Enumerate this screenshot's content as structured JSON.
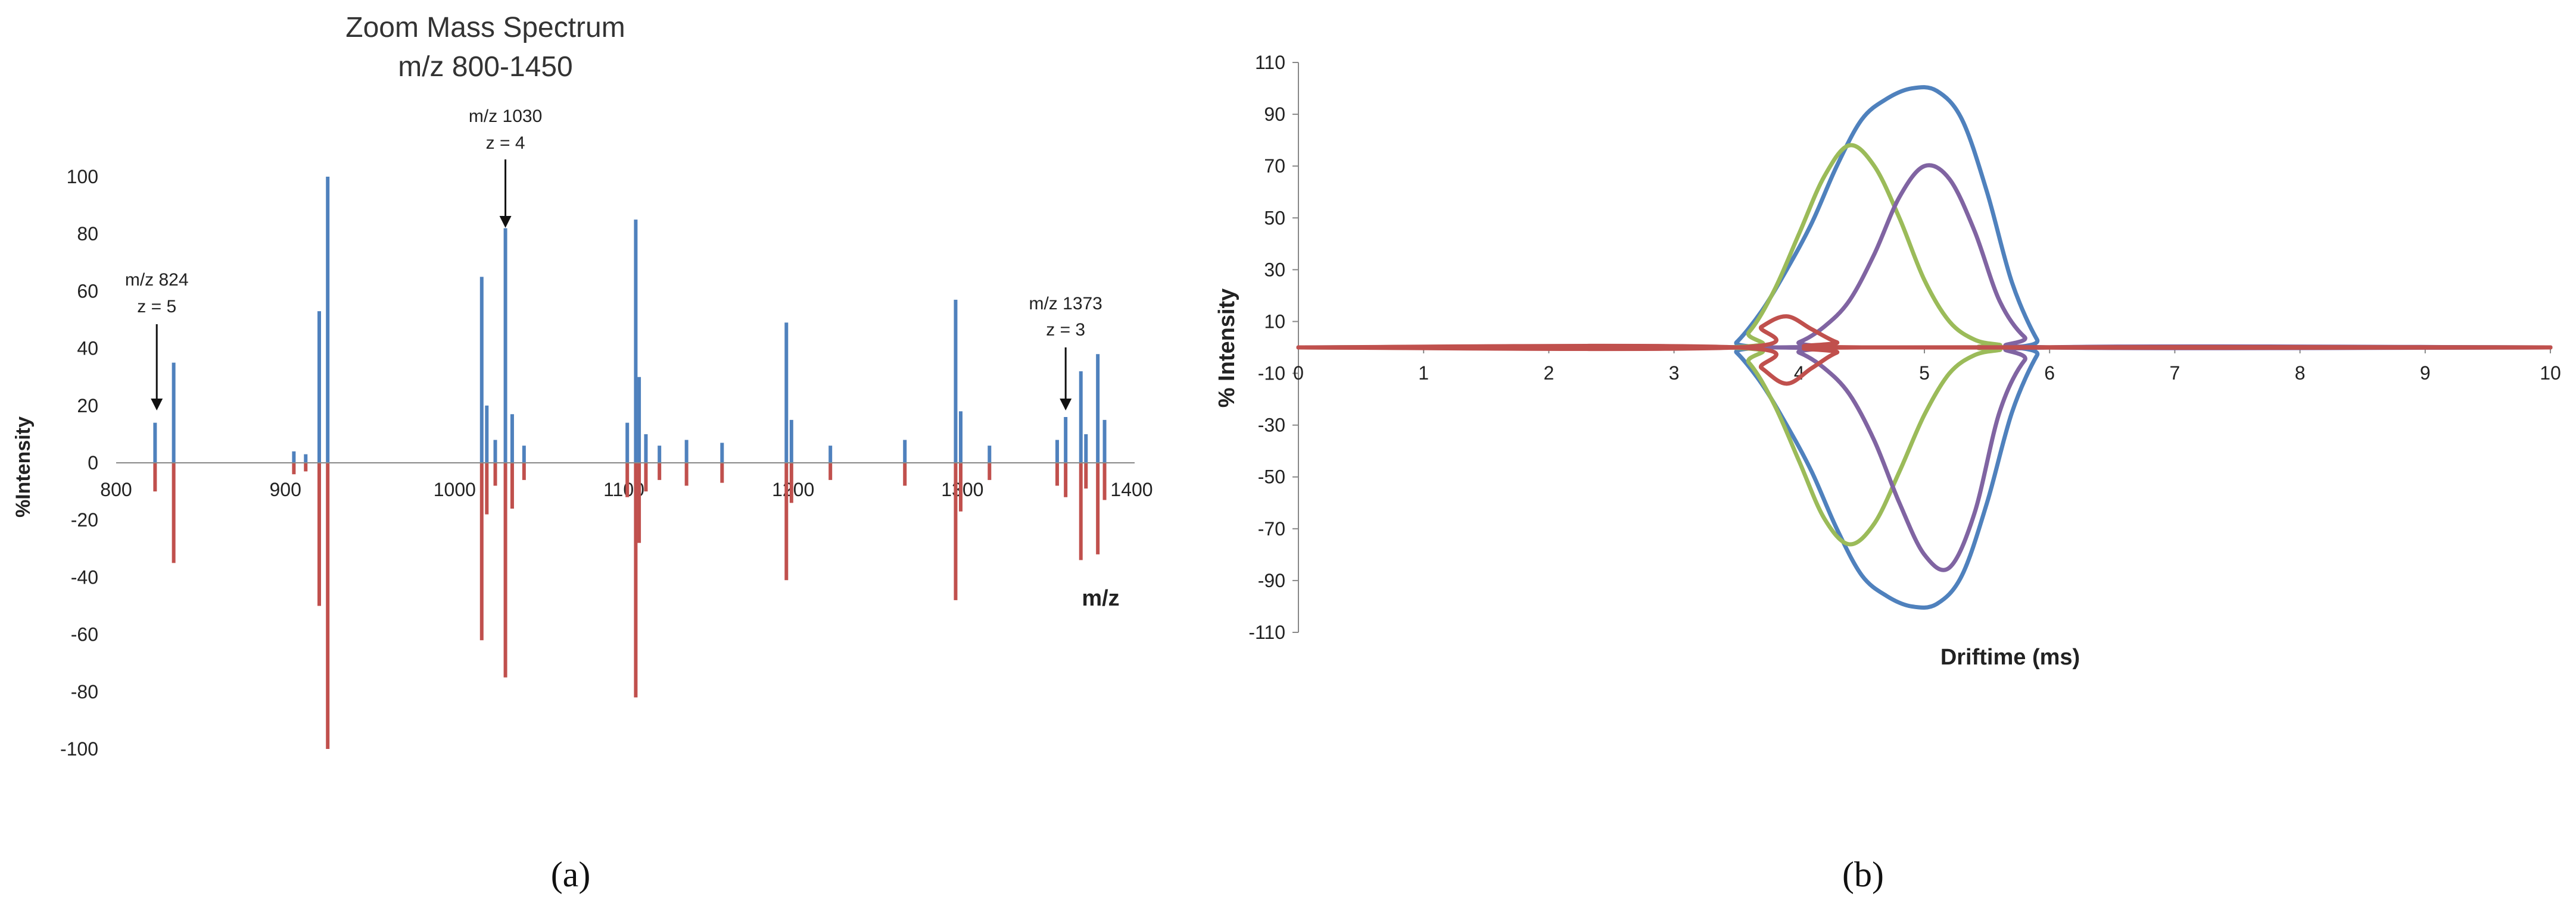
{
  "colors": {
    "positive": "#4f81bd",
    "negative": "#c0504d",
    "series_b": [
      "#4f81bd",
      "#9bbb59",
      "#8064a2",
      "#c0504d"
    ]
  },
  "chart_data": [
    {
      "panel": "(a)",
      "type": "bar",
      "title": "Zoom Mass Spectrum",
      "subtitle": "m/z 800-1450",
      "xlabel": "m/z",
      "ylabel": "%Intensity",
      "xlim": [
        800,
        1400
      ],
      "ylim": [
        -100,
        100
      ],
      "xticks": [
        "800",
        "900",
        "1000",
        "1100",
        "1200",
        "1300",
        "1400"
      ],
      "yticks": [
        "100",
        "80",
        "60",
        "40",
        "20",
        "0",
        "-20",
        "-40",
        "-60",
        "-80",
        "-100"
      ],
      "grid": false,
      "series": [
        {
          "x": [
            823,
            834,
            905,
            912,
            920,
            925,
            1016,
            1019,
            1024,
            1030,
            1034,
            1041,
            1102,
            1107,
            1109,
            1113,
            1121,
            1137,
            1158,
            1196,
            1199,
            1222,
            1266,
            1296,
            1299,
            1316,
            1356,
            1361,
            1370,
            1373,
            1380,
            1384
          ],
          "values": [
            14,
            35,
            4,
            3,
            53,
            100,
            65,
            20,
            8,
            82,
            17,
            6,
            14,
            85,
            30,
            10,
            6,
            8,
            7,
            49,
            15,
            6,
            8,
            57,
            18,
            6,
            8,
            16,
            32,
            10,
            38,
            15
          ]
        },
        {
          "x": [
            823,
            834,
            905,
            912,
            920,
            925,
            1016,
            1019,
            1024,
            1030,
            1034,
            1041,
            1102,
            1107,
            1109,
            1113,
            1121,
            1137,
            1158,
            1196,
            1199,
            1222,
            1266,
            1296,
            1299,
            1316,
            1356,
            1361,
            1370,
            1373,
            1380,
            1384
          ],
          "values": [
            -10,
            -35,
            -4,
            -3,
            -50,
            -100,
            -62,
            -18,
            -8,
            -75,
            -16,
            -6,
            -12,
            -82,
            -28,
            -10,
            -6,
            -8,
            -7,
            -41,
            -14,
            -6,
            -8,
            -48,
            -17,
            -6,
            -8,
            -12,
            -34,
            -9,
            -32,
            -13
          ]
        }
      ],
      "annotations": [
        {
          "label": "m/z 824",
          "sub": "z = 5",
          "x": 824
        },
        {
          "label": "m/z 1030",
          "sub": "z = 4",
          "x": 1030
        },
        {
          "label": "m/z 1373",
          "sub": "z = 3",
          "x": 1361
        }
      ]
    },
    {
      "panel": "(b)",
      "type": "line",
      "xlabel": "Driftime (ms)",
      "ylabel": "% Intensity",
      "xlim": [
        0,
        10
      ],
      "ylim": [
        -110,
        110
      ],
      "xticks": [
        "0",
        "1",
        "2",
        "3",
        "4",
        "5",
        "6",
        "7",
        "8",
        "9",
        "10"
      ],
      "yticks": [
        "110",
        "90",
        "70",
        "50",
        "30",
        "10",
        "-10",
        "-30",
        "-50",
        "-70",
        "-90",
        "-110"
      ],
      "grid": false,
      "series": [
        {
          "x": [
            0,
            3.4,
            3.5,
            3.7,
            3.9,
            4.1,
            4.3,
            4.5,
            4.7,
            4.9,
            5.1,
            5.3,
            5.5,
            5.7,
            5.9,
            6.0,
            10
          ],
          "values": [
            0,
            0,
            2,
            14,
            30,
            48,
            70,
            88,
            96,
            100,
            99,
            88,
            60,
            25,
            3,
            0,
            0
          ]
        },
        {
          "x": [
            0,
            3.4,
            3.5,
            3.7,
            3.9,
            4.1,
            4.3,
            4.5,
            4.7,
            4.9,
            5.1,
            5.3,
            5.5,
            5.7,
            5.9,
            6.0,
            10
          ],
          "values": [
            0,
            0,
            -2,
            -14,
            -30,
            -48,
            -70,
            -88,
            -96,
            -100,
            -99,
            -88,
            -60,
            -25,
            -3,
            0,
            0
          ]
        },
        {
          "x": [
            0,
            3.4,
            3.6,
            3.8,
            4.0,
            4.2,
            4.4,
            4.6,
            4.8,
            5.0,
            5.2,
            5.4,
            5.6,
            5.8,
            10
          ],
          "values": [
            0,
            0,
            6,
            22,
            44,
            66,
            78,
            70,
            50,
            26,
            10,
            3,
            1,
            0,
            0
          ]
        },
        {
          "x": [
            0,
            3.4,
            3.6,
            3.8,
            4.0,
            4.2,
            4.4,
            4.6,
            4.8,
            5.0,
            5.2,
            5.4,
            5.6,
            5.8,
            10
          ],
          "values": [
            0,
            0,
            -6,
            -22,
            -44,
            -66,
            -76,
            -68,
            -48,
            -26,
            -10,
            -3,
            -1,
            0,
            0
          ]
        },
        {
          "x": [
            0,
            3.8,
            4.0,
            4.2,
            4.4,
            4.6,
            4.8,
            5.0,
            5.2,
            5.4,
            5.6,
            5.8,
            6.0,
            10
          ],
          "values": [
            0,
            0,
            2,
            8,
            18,
            36,
            58,
            70,
            65,
            45,
            18,
            4,
            0,
            0
          ]
        },
        {
          "x": [
            0,
            3.8,
            4.0,
            4.2,
            4.4,
            4.6,
            4.8,
            5.0,
            5.2,
            5.4,
            5.6,
            5.8,
            6.0,
            10
          ],
          "values": [
            0,
            0,
            -2,
            -8,
            -18,
            -36,
            -60,
            -80,
            -85,
            -64,
            -25,
            -5,
            0,
            0
          ]
        },
        {
          "x": [
            0,
            3.5,
            3.7,
            3.9,
            4.1,
            4.3,
            4.5,
            10
          ],
          "values": [
            0,
            0,
            8,
            12,
            7,
            2,
            0,
            0
          ]
        },
        {
          "x": [
            0,
            3.5,
            3.7,
            3.9,
            4.1,
            4.3,
            4.5,
            10
          ],
          "values": [
            0,
            0,
            -8,
            -14,
            -8,
            -2,
            0,
            0
          ]
        }
      ]
    }
  ]
}
